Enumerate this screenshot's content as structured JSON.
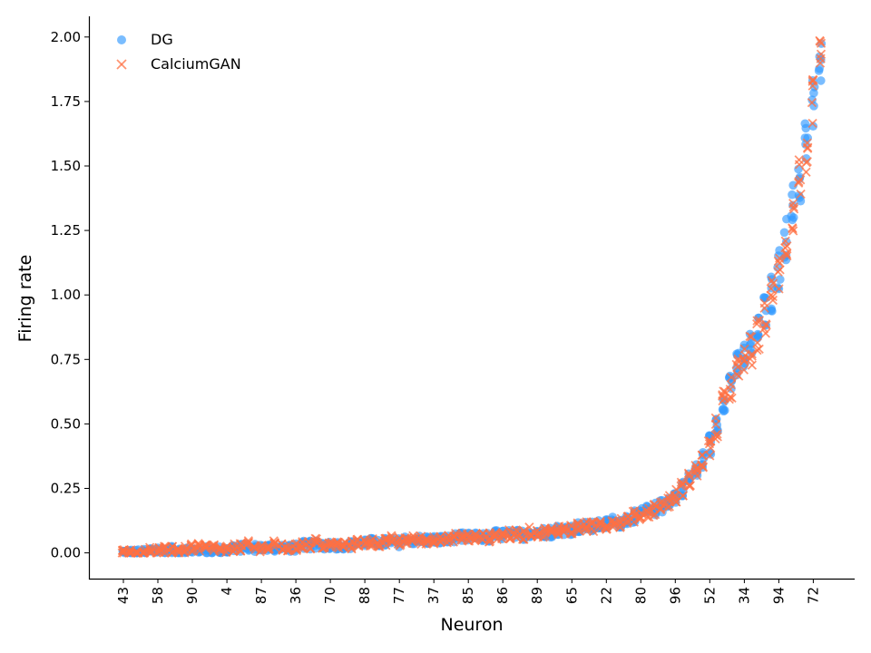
{
  "chart_data": {
    "type": "scatter",
    "xlabel": "Neuron",
    "ylabel": "Firing rate",
    "ylim": [
      -0.1,
      2.08
    ],
    "yticks": [
      0.0,
      0.25,
      0.5,
      0.75,
      1.0,
      1.25,
      1.5,
      1.75,
      2.0
    ],
    "ytick_labels": [
      "0.00",
      "0.25",
      "0.50",
      "0.75",
      "1.00",
      "1.25",
      "1.50",
      "1.75",
      "2.00"
    ],
    "xtick_labels": [
      "43",
      "58",
      "90",
      "4",
      "87",
      "36",
      "70",
      "88",
      "77",
      "37",
      "85",
      "86",
      "89",
      "65",
      "22",
      "80",
      "96",
      "52",
      "34",
      "94",
      "72"
    ],
    "num_neurons": 102,
    "legend_position": "upper-left",
    "grid": false,
    "series": [
      {
        "name": "DG",
        "marker": "circle",
        "color": "#3399ff",
        "values": [
          0.0,
          0.0,
          0.0,
          0.0,
          0.01,
          0.01,
          0.01,
          0.01,
          0.01,
          0.01,
          0.01,
          0.01,
          0.01,
          0.01,
          0.01,
          0.01,
          0.02,
          0.02,
          0.02,
          0.02,
          0.02,
          0.02,
          0.02,
          0.02,
          0.02,
          0.02,
          0.03,
          0.03,
          0.03,
          0.03,
          0.03,
          0.03,
          0.03,
          0.03,
          0.04,
          0.04,
          0.04,
          0.04,
          0.04,
          0.04,
          0.04,
          0.05,
          0.05,
          0.05,
          0.05,
          0.05,
          0.05,
          0.05,
          0.06,
          0.06,
          0.06,
          0.06,
          0.06,
          0.06,
          0.07,
          0.07,
          0.07,
          0.07,
          0.07,
          0.08,
          0.08,
          0.08,
          0.08,
          0.09,
          0.09,
          0.09,
          0.1,
          0.1,
          0.1,
          0.11,
          0.11,
          0.12,
          0.12,
          0.13,
          0.14,
          0.15,
          0.16,
          0.17,
          0.18,
          0.2,
          0.22,
          0.25,
          0.28,
          0.32,
          0.36,
          0.42,
          0.5,
          0.6,
          0.66,
          0.72,
          0.76,
          0.8,
          0.85,
          0.93,
          1.0,
          1.1,
          1.22,
          1.34,
          1.45,
          1.58,
          1.73,
          1.88
        ]
      },
      {
        "name": "CalciumGAN",
        "marker": "x",
        "color": "#ff7043",
        "values": [
          0.0,
          0.0,
          0.0,
          0.0,
          0.01,
          0.01,
          0.01,
          0.01,
          0.01,
          0.01,
          0.02,
          0.02,
          0.02,
          0.02,
          0.01,
          0.01,
          0.02,
          0.02,
          0.03,
          0.02,
          0.02,
          0.02,
          0.03,
          0.02,
          0.02,
          0.02,
          0.03,
          0.03,
          0.04,
          0.03,
          0.03,
          0.03,
          0.03,
          0.03,
          0.04,
          0.04,
          0.04,
          0.04,
          0.04,
          0.05,
          0.04,
          0.05,
          0.05,
          0.05,
          0.05,
          0.05,
          0.06,
          0.05,
          0.06,
          0.06,
          0.06,
          0.06,
          0.06,
          0.06,
          0.07,
          0.07,
          0.07,
          0.07,
          0.07,
          0.08,
          0.08,
          0.08,
          0.08,
          0.09,
          0.09,
          0.09,
          0.1,
          0.1,
          0.1,
          0.11,
          0.11,
          0.12,
          0.12,
          0.13,
          0.14,
          0.15,
          0.16,
          0.17,
          0.18,
          0.2,
          0.22,
          0.25,
          0.28,
          0.32,
          0.35,
          0.41,
          0.48,
          0.58,
          0.64,
          0.7,
          0.74,
          0.78,
          0.84,
          0.92,
          0.99,
          1.09,
          1.21,
          1.33,
          1.44,
          1.57,
          1.72,
          1.86
        ]
      }
    ]
  }
}
